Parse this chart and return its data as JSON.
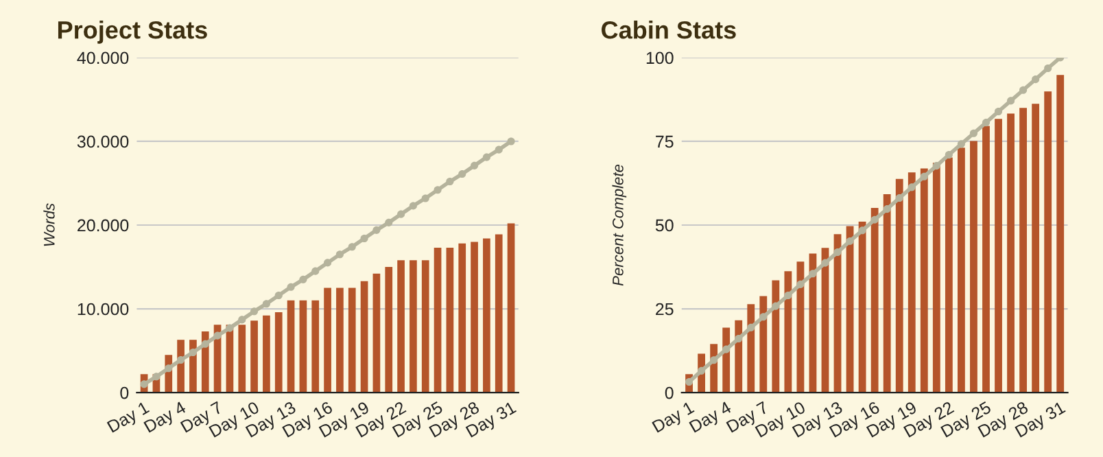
{
  "chart_data": [
    {
      "type": "bar",
      "title": "Project Stats",
      "ylabel": "Words",
      "categories": [
        "Day 1",
        null,
        null,
        "Day 4",
        null,
        null,
        "Day 7",
        null,
        null,
        "Day 10",
        null,
        null,
        "Day 13",
        null,
        null,
        "Day 16",
        null,
        null,
        "Day 19",
        null,
        null,
        "Day 22",
        null,
        null,
        "Day 25",
        null,
        null,
        "Day 28",
        null,
        null,
        "Day 31"
      ],
      "series": [
        {
          "color": "#b5552a",
          "values": [
            2200,
            2200,
            4500,
            6300,
            6300,
            7300,
            8100,
            8100,
            8100,
            8600,
            9200,
            9600,
            11000,
            11000,
            11000,
            12500,
            12500,
            12500,
            13300,
            14200,
            15000,
            15800,
            15800,
            15800,
            17300,
            17300,
            17800,
            18000,
            18400,
            18900,
            20200
          ]
        },
        {
          "type": "line",
          "color": "#b5b39c",
          "marker": "circle",
          "line_style": "solid",
          "values": [
            1000,
            1900,
            2900,
            3900,
            4800,
            5800,
            6800,
            7700,
            8700,
            9700,
            10600,
            11600,
            12600,
            13500,
            14500,
            15500,
            16500,
            17400,
            18400,
            19400,
            20300,
            21300,
            22300,
            23200,
            24200,
            25200,
            26100,
            27100,
            28100,
            29000,
            30000
          ]
        }
      ],
      "ylim": [
        0,
        40000
      ],
      "yticks": [
        0,
        {
          "value": 10000,
          "label": "10.000"
        },
        {
          "value": 20000,
          "label": "20.000"
        },
        {
          "value": 30000,
          "label": "30.000"
        },
        {
          "value": 40000,
          "label": "40.000"
        }
      ],
      "grid": "y",
      "legend": false
    },
    {
      "type": "bar",
      "title": "Cabin Stats",
      "ylabel": "Percent Complete",
      "categories": [
        "Day 1",
        null,
        null,
        "Day 4",
        null,
        null,
        "Day 7",
        null,
        null,
        "Day 10",
        null,
        null,
        "Day 13",
        null,
        null,
        "Day 16",
        null,
        null,
        "Day 19",
        null,
        null,
        "Day 22",
        null,
        null,
        "Day 25",
        null,
        null,
        "Day 28",
        null,
        null,
        "Day 31"
      ],
      "series": [
        {
          "color": "#b5552a",
          "values": [
            5.5,
            11.6,
            14.5,
            19.4,
            21.6,
            26.4,
            28.8,
            33.5,
            36.2,
            39.1,
            41.5,
            43.2,
            47.3,
            49.7,
            51.0,
            55.1,
            59.2,
            63.8,
            65.7,
            66.9,
            68.6,
            70.2,
            73.1,
            75.1,
            79.6,
            81.7,
            83.3,
            85.0,
            86.2,
            89.9,
            94.8
          ]
        },
        {
          "type": "line",
          "color": "#b5b39c",
          "marker": "circle",
          "line_style": "solid",
          "values": [
            3.2,
            6.5,
            9.7,
            12.9,
            16.1,
            19.4,
            22.6,
            25.8,
            29.0,
            32.3,
            35.5,
            38.7,
            41.9,
            45.2,
            48.4,
            51.6,
            54.8,
            58.1,
            61.3,
            64.5,
            67.7,
            71.0,
            74.2,
            77.4,
            80.6,
            83.9,
            87.1,
            90.3,
            93.5,
            96.8,
            100
          ]
        }
      ],
      "ylim": [
        0,
        100
      ],
      "yticks": [
        0,
        25,
        50,
        75,
        100
      ],
      "grid": "y",
      "legend": false
    }
  ]
}
